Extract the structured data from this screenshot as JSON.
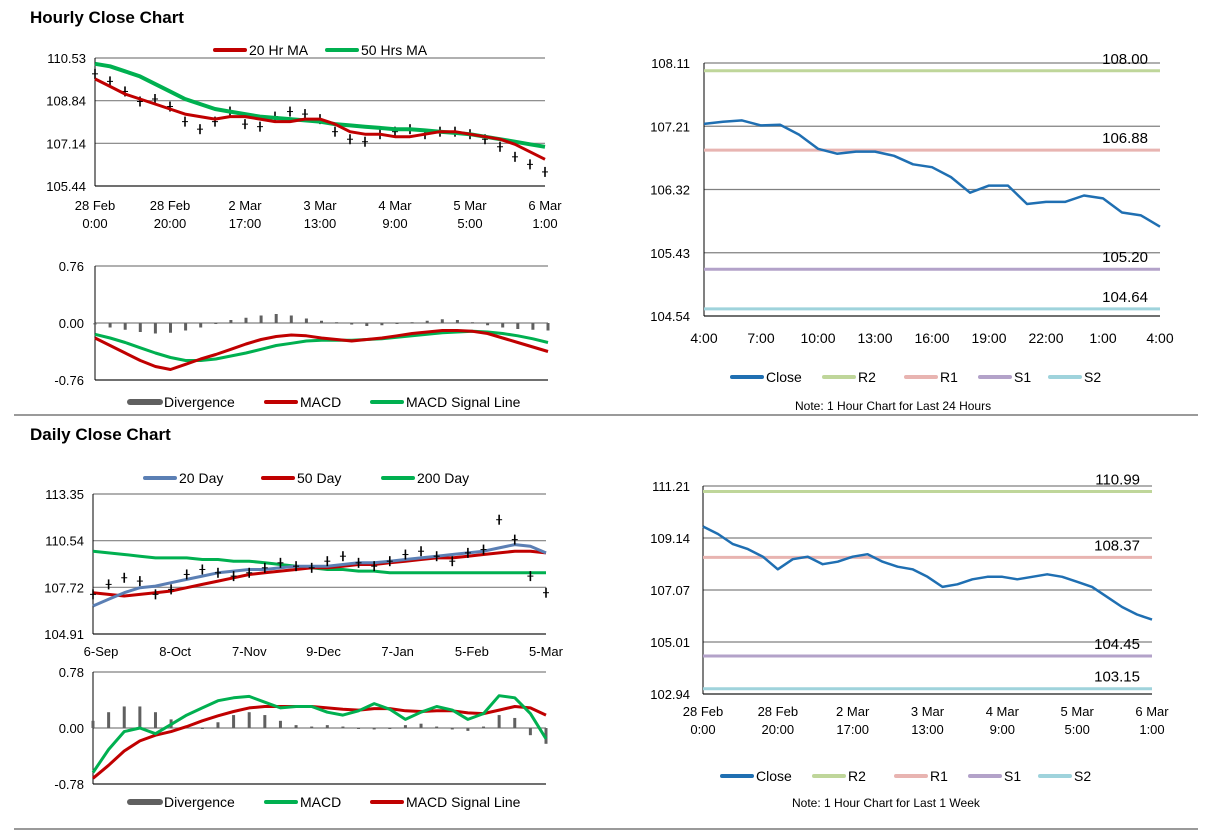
{
  "hourly_section": {
    "title": "Hourly Close Chart",
    "note": "Note: 1 Hour Chart for Last 24 Hours"
  },
  "daily_section": {
    "title": "Daily Close Chart",
    "note": "Note: 1 Hour Chart for Last 1 Week"
  },
  "colors": {
    "close": "#1f6fb2",
    "r2": "#bfd69a",
    "r1": "#e8b4b1",
    "s1": "#b3a2c9",
    "s2": "#9fd3dc",
    "ma_red": "#c00000",
    "ma_green": "#00b050",
    "ma_blue": "#5b7fb4",
    "price": "#000000",
    "grid": "#808080",
    "divergence": "#606060"
  },
  "chart_data": [
    {
      "id": "hourly_price",
      "type": "line",
      "title": "",
      "yticks": [
        "105.44",
        "107.14",
        "108.84",
        "110.53"
      ],
      "ylim": [
        105.44,
        110.53
      ],
      "xticks": [
        "28 Feb\n0:00",
        "28 Feb\n20:00",
        "2 Mar\n17:00",
        "3 Mar\n13:00",
        "4 Mar\n9:00",
        "5 Mar\n5:00",
        "6 Mar\n1:00"
      ],
      "legend": [
        "20 Hr MA",
        "50 Hrs MA"
      ],
      "series": [
        {
          "name": "Price",
          "values": [
            109.9,
            109.6,
            109.2,
            108.8,
            108.9,
            108.6,
            108.0,
            107.7,
            108.0,
            108.4,
            107.9,
            107.8,
            108.2,
            108.4,
            108.3,
            108.1,
            107.6,
            107.3,
            107.2,
            107.5,
            107.6,
            107.7,
            107.5,
            107.6,
            107.6,
            107.5,
            107.3,
            107.0,
            106.6,
            106.3,
            106.0
          ]
        },
        {
          "name": "20 Hr MA",
          "values": [
            109.7,
            109.4,
            109.1,
            108.9,
            108.7,
            108.5,
            108.3,
            108.2,
            108.1,
            108.2,
            108.2,
            108.1,
            108.0,
            108.0,
            108.1,
            108.1,
            107.9,
            107.6,
            107.5,
            107.5,
            107.4,
            107.4,
            107.5,
            107.6,
            107.6,
            107.5,
            107.4,
            107.3,
            107.1,
            106.8,
            106.5
          ]
        },
        {
          "name": "50 Hrs MA",
          "values": [
            110.3,
            110.2,
            110.0,
            109.8,
            109.5,
            109.2,
            108.9,
            108.7,
            108.5,
            108.4,
            108.3,
            108.2,
            108.15,
            108.1,
            108.05,
            108.0,
            107.9,
            107.85,
            107.8,
            107.75,
            107.7,
            107.7,
            107.65,
            107.6,
            107.55,
            107.5,
            107.4,
            107.3,
            107.2,
            107.1,
            107.0
          ]
        }
      ]
    },
    {
      "id": "hourly_macd",
      "type": "line",
      "yticks": [
        "-0.76",
        "0.00",
        "0.76"
      ],
      "ylim": [
        -0.76,
        0.76
      ],
      "legend": [
        "Divergence",
        "MACD",
        "MACD Signal Line"
      ],
      "series": [
        {
          "name": "Divergence",
          "values": [
            -0.02,
            -0.06,
            -0.09,
            -0.12,
            -0.14,
            -0.13,
            -0.1,
            -0.06,
            0.0,
            0.04,
            0.07,
            0.1,
            0.12,
            0.1,
            0.06,
            0.03,
            0.01,
            -0.02,
            -0.04,
            -0.03,
            -0.01,
            0.01,
            0.03,
            0.05,
            0.04,
            0.01,
            -0.03,
            -0.06,
            -0.08,
            -0.09,
            -0.1
          ]
        },
        {
          "name": "MACD",
          "values": [
            -0.2,
            -0.3,
            -0.4,
            -0.5,
            -0.58,
            -0.62,
            -0.55,
            -0.48,
            -0.42,
            -0.35,
            -0.28,
            -0.22,
            -0.18,
            -0.16,
            -0.17,
            -0.2,
            -0.22,
            -0.24,
            -0.22,
            -0.2,
            -0.17,
            -0.14,
            -0.12,
            -0.1,
            -0.1,
            -0.11,
            -0.14,
            -0.2,
            -0.26,
            -0.32,
            -0.38
          ]
        },
        {
          "name": "MACD Signal Line",
          "values": [
            -0.15,
            -0.2,
            -0.26,
            -0.33,
            -0.4,
            -0.46,
            -0.5,
            -0.5,
            -0.48,
            -0.44,
            -0.4,
            -0.35,
            -0.3,
            -0.27,
            -0.24,
            -0.23,
            -0.23,
            -0.23,
            -0.22,
            -0.21,
            -0.19,
            -0.17,
            -0.15,
            -0.13,
            -0.12,
            -0.11,
            -0.12,
            -0.14,
            -0.17,
            -0.21,
            -0.26
          ]
        }
      ]
    },
    {
      "id": "hourly_24h",
      "type": "line",
      "yticks": [
        "104.54",
        "105.43",
        "106.32",
        "107.21",
        "108.11"
      ],
      "ylim": [
        104.54,
        108.11
      ],
      "xticks": [
        "4:00",
        "7:00",
        "10:00",
        "13:00",
        "16:00",
        "19:00",
        "22:00",
        "1:00",
        "4:00"
      ],
      "x": [
        0,
        1,
        2,
        3,
        4,
        5,
        6,
        7,
        8,
        9,
        10,
        11,
        12,
        13,
        14,
        15,
        16,
        17,
        18,
        19,
        20,
        21,
        22,
        23,
        24
      ],
      "series": [
        {
          "name": "Close",
          "values": [
            107.25,
            107.28,
            107.3,
            107.23,
            107.24,
            107.1,
            106.9,
            106.83,
            106.86,
            106.86,
            106.8,
            106.68,
            106.64,
            106.5,
            106.28,
            106.38,
            106.38,
            106.12,
            106.15,
            106.15,
            106.24,
            106.2,
            106.0,
            105.96,
            105.8
          ]
        }
      ],
      "levels": [
        {
          "name": "R2",
          "value": 108.0,
          "label": "108.00"
        },
        {
          "name": "R1",
          "value": 106.88,
          "label": "106.88"
        },
        {
          "name": "S1",
          "value": 105.2,
          "label": "105.20"
        },
        {
          "name": "S2",
          "value": 104.64,
          "label": "104.64"
        }
      ],
      "legend": [
        "Close",
        "R2",
        "R1",
        "S1",
        "S2"
      ]
    },
    {
      "id": "daily_price",
      "type": "line",
      "yticks": [
        "104.91",
        "107.72",
        "110.54",
        "113.35"
      ],
      "ylim": [
        104.91,
        113.35
      ],
      "xticks": [
        "6-Sep",
        "8-Oct",
        "7-Nov",
        "9-Dec",
        "7-Jan",
        "5-Feb",
        "5-Mar"
      ],
      "legend": [
        "20 Day",
        "50 Day",
        "200 Day"
      ],
      "series": [
        {
          "name": "Price",
          "values": [
            107.3,
            107.9,
            108.3,
            108.1,
            107.3,
            107.6,
            108.5,
            108.8,
            108.6,
            108.4,
            108.6,
            108.9,
            109.2,
            109.0,
            108.9,
            109.3,
            109.6,
            109.2,
            109.0,
            109.3,
            109.7,
            109.9,
            109.6,
            109.3,
            109.8,
            110.0,
            111.8,
            110.6,
            108.4,
            107.4
          ]
        },
        {
          "name": "20 Day",
          "values": [
            106.6,
            107.0,
            107.4,
            107.7,
            107.8,
            108.0,
            108.2,
            108.4,
            108.6,
            108.7,
            108.8,
            108.8,
            108.9,
            109.0,
            109.0,
            109.0,
            109.1,
            109.2,
            109.2,
            109.3,
            109.4,
            109.5,
            109.6,
            109.7,
            109.8,
            109.9,
            110.1,
            110.3,
            110.2,
            109.8
          ]
        },
        {
          "name": "50 Day",
          "values": [
            107.4,
            107.3,
            107.2,
            107.3,
            107.4,
            107.5,
            107.7,
            107.9,
            108.1,
            108.3,
            108.5,
            108.6,
            108.7,
            108.8,
            108.9,
            108.9,
            109.0,
            109.1,
            109.1,
            109.2,
            109.3,
            109.4,
            109.5,
            109.5,
            109.6,
            109.7,
            109.8,
            109.9,
            109.9,
            109.8
          ]
        },
        {
          "name": "200 Day",
          "values": [
            109.9,
            109.8,
            109.7,
            109.6,
            109.5,
            109.5,
            109.5,
            109.4,
            109.4,
            109.3,
            109.3,
            109.2,
            109.1,
            109.0,
            108.9,
            108.8,
            108.8,
            108.7,
            108.7,
            108.6,
            108.6,
            108.6,
            108.6,
            108.6,
            108.6,
            108.6,
            108.6,
            108.6,
            108.6,
            108.6
          ]
        }
      ]
    },
    {
      "id": "daily_macd",
      "type": "line",
      "yticks": [
        "-0.78",
        "0.00",
        "0.78"
      ],
      "ylim": [
        -0.78,
        0.78
      ],
      "legend": [
        "Divergence",
        "MACD",
        "MACD Signal Line"
      ],
      "series": [
        {
          "name": "Divergence",
          "values": [
            0.1,
            0.22,
            0.3,
            0.3,
            0.22,
            0.12,
            0.02,
            0.0,
            0.08,
            0.18,
            0.22,
            0.18,
            0.1,
            0.04,
            0.02,
            0.04,
            0.02,
            0.0,
            -0.02,
            0.0,
            0.04,
            0.06,
            0.02,
            -0.02,
            -0.04,
            0.02,
            0.18,
            0.14,
            -0.1,
            -0.22
          ]
        },
        {
          "name": "MACD",
          "values": [
            -0.62,
            -0.3,
            -0.05,
            0.0,
            -0.08,
            0.05,
            0.18,
            0.28,
            0.38,
            0.42,
            0.44,
            0.36,
            0.28,
            0.3,
            0.3,
            0.22,
            0.18,
            0.24,
            0.34,
            0.26,
            0.12,
            0.22,
            0.3,
            0.25,
            0.12,
            0.2,
            0.45,
            0.42,
            0.2,
            -0.15
          ]
        },
        {
          "name": "MACD Signal Line",
          "values": [
            -0.7,
            -0.52,
            -0.32,
            -0.18,
            -0.1,
            -0.05,
            0.02,
            0.1,
            0.17,
            0.23,
            0.28,
            0.3,
            0.3,
            0.3,
            0.3,
            0.28,
            0.26,
            0.25,
            0.27,
            0.27,
            0.24,
            0.23,
            0.24,
            0.24,
            0.21,
            0.2,
            0.25,
            0.3,
            0.28,
            0.18
          ]
        }
      ]
    },
    {
      "id": "weekly_hourly",
      "type": "line",
      "yticks": [
        "102.94",
        "105.01",
        "107.07",
        "109.14",
        "111.21"
      ],
      "ylim": [
        102.94,
        111.21
      ],
      "xticks": [
        "28 Feb\n0:00",
        "28 Feb\n20:00",
        "2 Mar\n17:00",
        "3 Mar\n13:00",
        "4 Mar\n9:00",
        "5 Mar\n5:00",
        "6 Mar\n1:00"
      ],
      "series": [
        {
          "name": "Close",
          "values": [
            109.6,
            109.3,
            108.9,
            108.7,
            108.4,
            107.9,
            108.3,
            108.4,
            108.1,
            108.2,
            108.4,
            108.5,
            108.2,
            108.0,
            107.9,
            107.6,
            107.2,
            107.3,
            107.5,
            107.6,
            107.6,
            107.5,
            107.6,
            107.7,
            107.6,
            107.4,
            107.2,
            106.8,
            106.4,
            106.1,
            105.9
          ]
        }
      ],
      "levels": [
        {
          "name": "R2",
          "value": 110.99,
          "label": "110.99"
        },
        {
          "name": "R1",
          "value": 108.37,
          "label": "108.37"
        },
        {
          "name": "S1",
          "value": 104.45,
          "label": "104.45"
        },
        {
          "name": "S2",
          "value": 103.15,
          "label": "103.15"
        }
      ],
      "legend": [
        "Close",
        "R2",
        "R1",
        "S1",
        "S2"
      ]
    }
  ]
}
